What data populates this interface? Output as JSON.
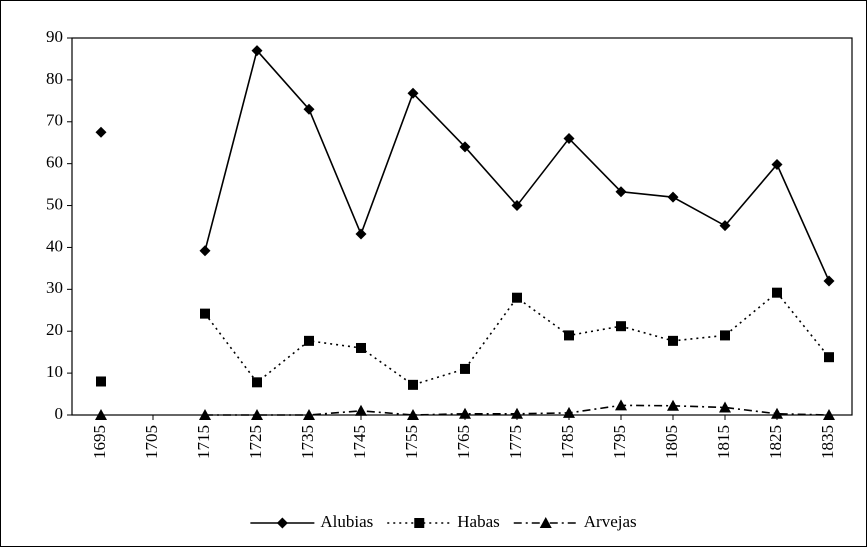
{
  "chart_data": {
    "type": "line",
    "categories": [
      "1695",
      "1705",
      "1715",
      "1725",
      "1735",
      "1745",
      "1755",
      "1765",
      "1775",
      "1785",
      "1795",
      "1805",
      "1815",
      "1825",
      "1835"
    ],
    "series": [
      {
        "name": "Alubias",
        "color": "#000000",
        "dash": "solid",
        "marker": "diamond",
        "values": [
          67.5,
          null,
          39.2,
          87,
          73,
          43.2,
          76.8,
          64,
          50,
          66,
          53.3,
          52,
          45.2,
          59.8,
          32
        ]
      },
      {
        "name": "Habas",
        "color": "#000000",
        "dash": "dotted",
        "marker": "square",
        "values": [
          8,
          null,
          24.2,
          7.8,
          17.7,
          16,
          7.2,
          11,
          28,
          19,
          21.2,
          17.7,
          19,
          29.2,
          13.8
        ]
      },
      {
        "name": "Arvejas",
        "color": "#000000",
        "dash": "dashdot",
        "marker": "triangle",
        "values": [
          0,
          null,
          0,
          0,
          0,
          1,
          0,
          0.3,
          0.3,
          0.5,
          2.3,
          2.2,
          1.8,
          0.3,
          0
        ]
      }
    ],
    "ylim": [
      0,
      90
    ],
    "yticks": [
      0,
      10,
      20,
      30,
      40,
      50,
      60,
      70,
      80,
      90
    ],
    "grid": false,
    "legend": "bottom"
  }
}
